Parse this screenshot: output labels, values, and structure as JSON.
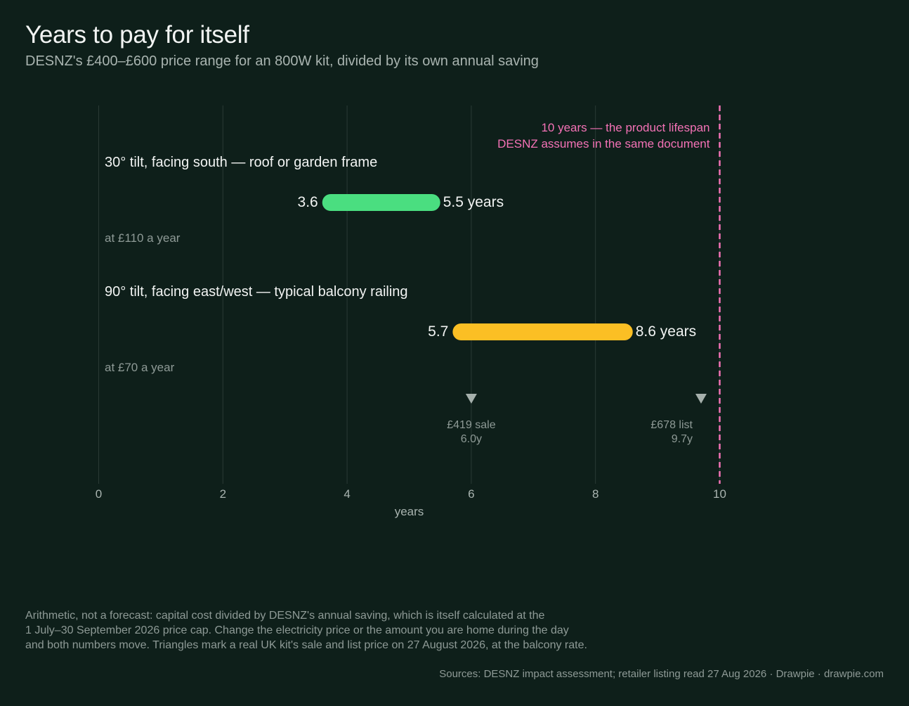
{
  "title": "Years to pay for itself",
  "subtitle": "DESNZ's £400–£600 price range for an 800W kit, divided by its own annual saving",
  "colors": {
    "background": "#0e1f1a",
    "south": "#4ade80",
    "balcony": "#fbbf24",
    "lifespan": "#f472b6",
    "marker": "#a6b0ac"
  },
  "chart_data": {
    "type": "range-bar",
    "xlabel": "years",
    "xlim": [
      0,
      10
    ],
    "xticks": [
      "0",
      "2",
      "4",
      "6",
      "8",
      "10"
    ],
    "grid": true,
    "series": [
      {
        "label": "30° tilt, facing south — roof or garden frame",
        "sublabel": "at £110 a year",
        "low": 3.6,
        "high": 5.5,
        "low_label": "3.6",
        "high_label": "5.5 years",
        "color": "#4ade80"
      },
      {
        "label": "90° tilt, facing east/west — typical balcony railing",
        "sublabel": "at £70 a year",
        "low": 5.7,
        "high": 8.6,
        "low_label": "5.7",
        "high_label": "8.6 years",
        "color": "#fbbf24"
      }
    ],
    "reference_line": {
      "value": 10,
      "label_lines": [
        "10 years — the product lifespan",
        "DESNZ assumes in the same document"
      ]
    },
    "markers": [
      {
        "value": 6.0,
        "label_lines": [
          "£419 sale",
          "6.0y"
        ]
      },
      {
        "value": 9.7,
        "label_lines": [
          "£678 list",
          "9.7y"
        ]
      }
    ]
  },
  "footnote": {
    "lines": [
      "Arithmetic, not a forecast: capital cost divided by DESNZ's annual saving, which is itself calculated at the",
      "1 July–30 September 2026 price cap. Change the electricity price or the amount you are home during the day",
      "and both numbers move. Triangles mark a real UK kit's sale and list price on 27 August 2026, at the balcony rate."
    ]
  },
  "sources": "Sources: DESNZ impact assessment; retailer listing read 27 Aug 2026  ·  Drawpie · drawpie.com"
}
